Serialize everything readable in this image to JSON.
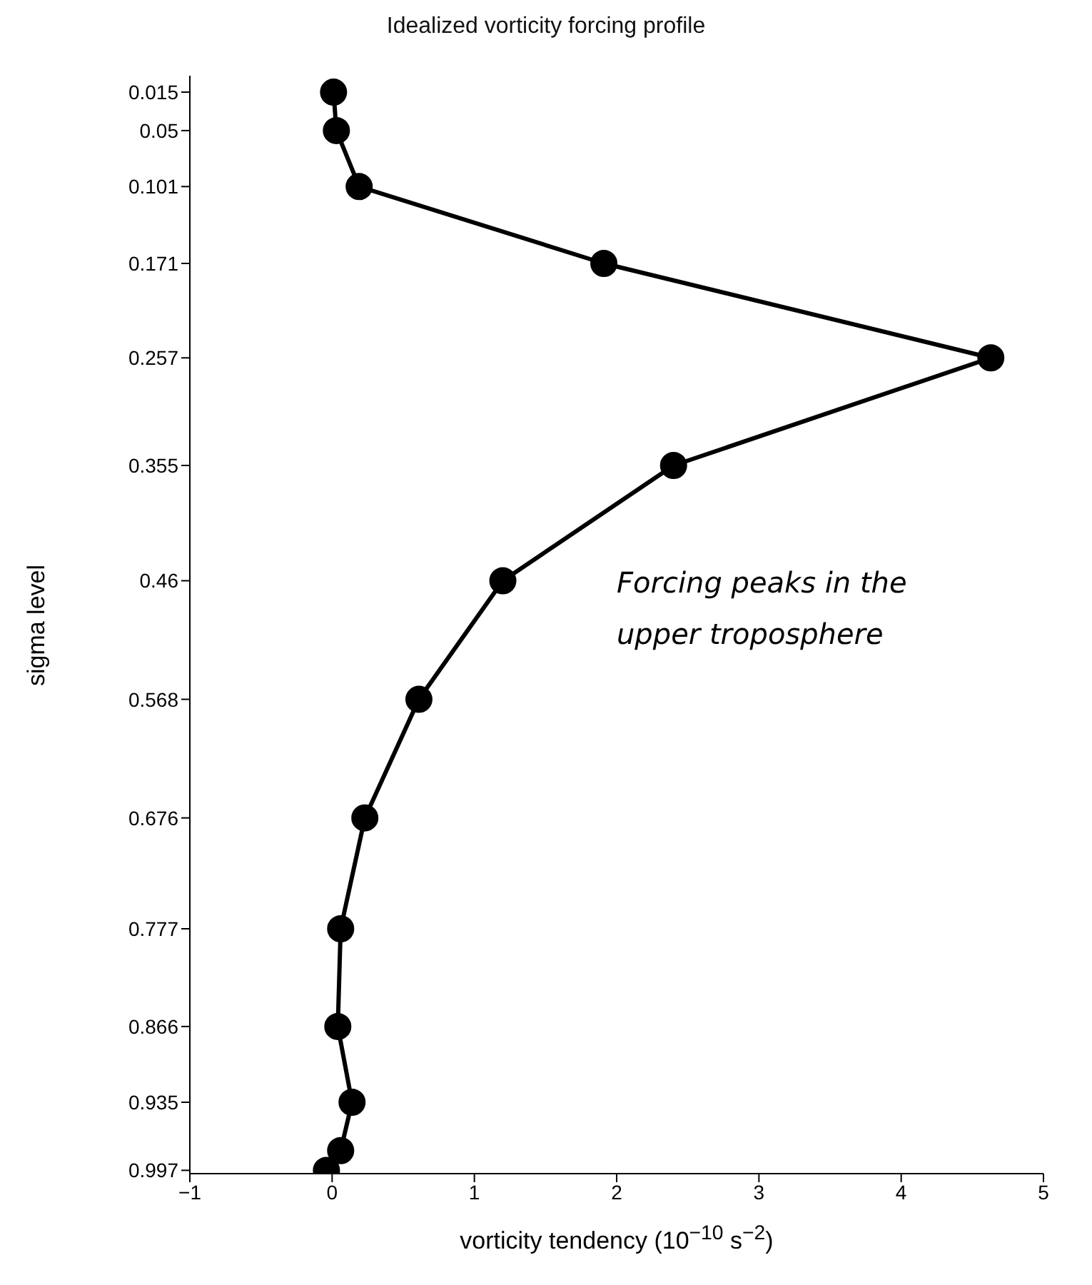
{
  "chart_data": {
    "type": "line",
    "title": "Idealized vorticity forcing profile",
    "xlabel": "vorticity tendency (10$^{−10}$ s$^{−2}$)",
    "ylabel": "sigma level",
    "series": [
      {
        "color": "#000000",
        "x": [
          0.01,
          0.03,
          0.19,
          1.91,
          4.63,
          2.4,
          1.2,
          0.61,
          0.23,
          0.06,
          0.04,
          0.14,
          0.06,
          -0.04
        ],
        "values": [
          0.015,
          0.05,
          0.101,
          0.171,
          0.257,
          0.355,
          0.46,
          0.568,
          0.676,
          0.777,
          0.866,
          0.935,
          0.979,
          0.997
        ]
      }
    ],
    "xlim": [
      -1,
      5
    ],
    "xticks": [
      {
        "value": -1,
        "label": "−1"
      },
      0,
      1,
      2,
      3,
      4,
      5
    ],
    "ylim": [
      1,
      0
    ],
    "yticks": [
      0.015,
      0.05,
      0.101,
      0.171,
      0.257,
      0.355,
      0.46,
      0.568,
      0.676,
      0.777,
      0.866,
      0.935,
      0.997
    ],
    "marker": "circle",
    "line_style": "solid",
    "annotations": [
      "Forcing peaks in the upper troposphere"
    ]
  }
}
